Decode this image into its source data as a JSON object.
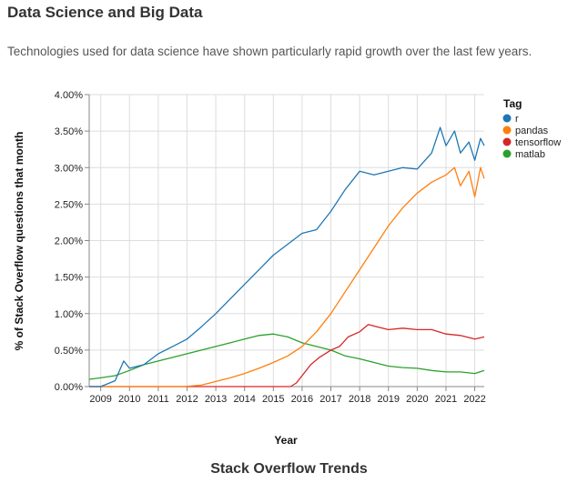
{
  "header": {
    "title": "Data Science and Big Data",
    "subtitle": "Technologies used for data science have shown particularly rapid growth over the last few years."
  },
  "caption": "Stack Overflow Trends",
  "chart_data": {
    "type": "line",
    "title": "Stack Overflow Trends",
    "xlabel": "Year",
    "ylabel": "% of Stack Overflow questions that month",
    "xlim": [
      2008.6,
      2022.33
    ],
    "ylim": [
      0,
      4.0
    ],
    "x_ticks": [
      2009,
      2010,
      2011,
      2012,
      2013,
      2014,
      2015,
      2016,
      2017,
      2018,
      2019,
      2020,
      2021,
      2022
    ],
    "x_tick_labels": [
      "2009",
      "2010",
      "2011",
      "2012",
      "2013",
      "2014",
      "2015",
      "2016",
      "2017",
      "2018",
      "2019",
      "2020",
      "2021",
      "2022"
    ],
    "y_ticks": [
      0,
      0.5,
      1.0,
      1.5,
      2.0,
      2.5,
      3.0,
      3.5,
      4.0
    ],
    "y_tick_labels": [
      "0.00%",
      "0.50%",
      "1.00%",
      "1.50%",
      "2.00%",
      "2.50%",
      "3.00%",
      "3.50%",
      "4.00%"
    ],
    "grid": true,
    "legend": {
      "title": "Tag",
      "position": "right"
    },
    "series": [
      {
        "name": "r",
        "color": "#1f77b4",
        "x": [
          2008.6,
          2009.0,
          2009.5,
          2009.8,
          2010.0,
          2010.5,
          2011.0,
          2011.5,
          2012.0,
          2012.5,
          2013.0,
          2013.5,
          2014.0,
          2014.5,
          2015.0,
          2015.5,
          2016.0,
          2016.5,
          2017.0,
          2017.5,
          2018.0,
          2018.5,
          2019.0,
          2019.5,
          2020.0,
          2020.5,
          2020.8,
          2021.0,
          2021.3,
          2021.5,
          2021.8,
          2022.0,
          2022.2,
          2022.33
        ],
        "y": [
          0.0,
          0.0,
          0.08,
          0.35,
          0.25,
          0.3,
          0.45,
          0.55,
          0.65,
          0.82,
          1.0,
          1.2,
          1.4,
          1.6,
          1.8,
          1.95,
          2.1,
          2.15,
          2.4,
          2.7,
          2.95,
          2.9,
          2.95,
          3.0,
          2.98,
          3.2,
          3.55,
          3.3,
          3.5,
          3.2,
          3.35,
          3.1,
          3.4,
          3.3
        ]
      },
      {
        "name": "pandas",
        "color": "#ff7f0e",
        "x": [
          2008.6,
          2011.9,
          2012.5,
          2013.0,
          2013.5,
          2014.0,
          2014.5,
          2015.0,
          2015.5,
          2016.0,
          2016.5,
          2017.0,
          2017.5,
          2018.0,
          2018.5,
          2019.0,
          2019.5,
          2020.0,
          2020.5,
          2021.0,
          2021.3,
          2021.5,
          2021.8,
          2022.0,
          2022.2,
          2022.33
        ],
        "y": [
          0.0,
          0.0,
          0.02,
          0.07,
          0.12,
          0.18,
          0.25,
          0.33,
          0.42,
          0.55,
          0.75,
          1.0,
          1.3,
          1.6,
          1.9,
          2.2,
          2.45,
          2.65,
          2.8,
          2.9,
          3.0,
          2.75,
          2.95,
          2.6,
          3.0,
          2.85
        ]
      },
      {
        "name": "tensorflow",
        "color": "#d62728",
        "x": [
          2008.6,
          2015.6,
          2015.8,
          2016.0,
          2016.3,
          2016.6,
          2017.0,
          2017.3,
          2017.6,
          2018.0,
          2018.3,
          2018.6,
          2019.0,
          2019.5,
          2020.0,
          2020.5,
          2021.0,
          2021.5,
          2022.0,
          2022.33
        ],
        "y": [
          0.0,
          0.0,
          0.05,
          0.15,
          0.3,
          0.4,
          0.5,
          0.55,
          0.68,
          0.75,
          0.85,
          0.82,
          0.78,
          0.8,
          0.78,
          0.78,
          0.72,
          0.7,
          0.65,
          0.68
        ]
      },
      {
        "name": "matlab",
        "color": "#2ca02c",
        "x": [
          2008.6,
          2009.0,
          2009.5,
          2010.0,
          2010.5,
          2011.0,
          2011.5,
          2012.0,
          2012.5,
          2013.0,
          2013.5,
          2014.0,
          2014.5,
          2015.0,
          2015.5,
          2016.0,
          2016.5,
          2017.0,
          2017.5,
          2018.0,
          2018.5,
          2019.0,
          2019.5,
          2020.0,
          2020.5,
          2021.0,
          2021.5,
          2022.0,
          2022.33
        ],
        "y": [
          0.1,
          0.12,
          0.15,
          0.22,
          0.3,
          0.35,
          0.4,
          0.45,
          0.5,
          0.55,
          0.6,
          0.65,
          0.7,
          0.72,
          0.68,
          0.6,
          0.55,
          0.5,
          0.42,
          0.38,
          0.33,
          0.28,
          0.26,
          0.25,
          0.22,
          0.2,
          0.2,
          0.18,
          0.22
        ]
      }
    ]
  }
}
